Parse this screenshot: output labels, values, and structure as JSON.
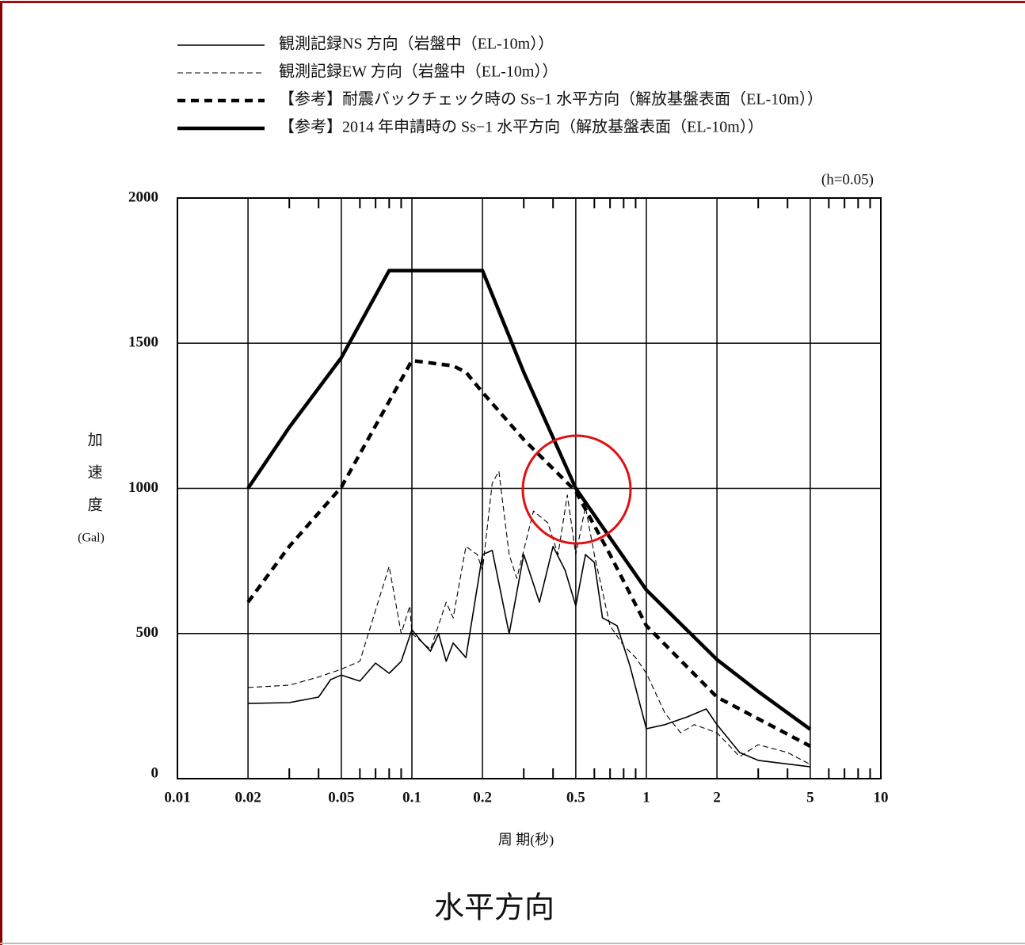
{
  "chart_data": {
    "type": "line",
    "title": "水平方向",
    "annotation": "(h=0.05)",
    "y_label": "加速度",
    "y_unit": "(Gal)",
    "x_label": "周 期(秒)",
    "xscale": "log",
    "xlim": [
      0.01,
      10
    ],
    "xticks": [
      0.01,
      0.02,
      0.05,
      0.1,
      0.2,
      0.5,
      1,
      2,
      5,
      10
    ],
    "xminorticks": [
      0.03,
      0.04,
      0.06,
      0.07,
      0.08,
      0.09,
      0.3,
      0.4,
      0.6,
      0.7,
      0.8,
      0.9,
      3,
      4,
      6,
      7,
      8,
      9
    ],
    "ylim": [
      0,
      2000
    ],
    "yticks": [
      0,
      500,
      1000,
      1500,
      2000
    ],
    "grid": true,
    "legend": "top",
    "series": [
      {
        "name": "観測記録NS 方向（岩盤中（EL-10m））",
        "color": "#000000",
        "style": "solid",
        "width": 1.6,
        "x": [
          0.02,
          0.03,
          0.04,
          0.045,
          0.05,
          0.06,
          0.07,
          0.08,
          0.09,
          0.1,
          0.11,
          0.12,
          0.13,
          0.14,
          0.15,
          0.17,
          0.2,
          0.22,
          0.26,
          0.3,
          0.35,
          0.4,
          0.45,
          0.5,
          0.55,
          0.6,
          0.65,
          0.75,
          0.85,
          1,
          1.2,
          1.5,
          1.8,
          2,
          2.5,
          3,
          5
        ],
        "values": [
          259,
          262,
          281,
          341,
          357,
          336,
          398,
          363,
          404,
          513,
          472,
          439,
          499,
          404,
          467,
          417,
          772,
          786,
          499,
          772,
          608,
          800,
          718,
          595,
          772,
          745,
          554,
          527,
          390,
          172,
          186,
          213,
          240,
          186,
          90,
          63,
          41
        ]
      },
      {
        "name": "観測記録EW 方向（岩盤中（EL-10m））",
        "color": "#000000",
        "style": "dashed-thin",
        "width": 1.1,
        "x": [
          0.02,
          0.03,
          0.04,
          0.05,
          0.06,
          0.07,
          0.08,
          0.09,
          0.098,
          0.1,
          0.12,
          0.14,
          0.15,
          0.17,
          0.19,
          0.2,
          0.22,
          0.235,
          0.26,
          0.28,
          0.33,
          0.38,
          0.42,
          0.46,
          0.5,
          0.55,
          0.6,
          0.7,
          0.8,
          0.9,
          1,
          1.2,
          1.4,
          1.6,
          2,
          2.5,
          3,
          4,
          5
        ],
        "values": [
          314,
          322,
          350,
          377,
          404,
          580,
          731,
          500,
          595,
          500,
          445,
          608,
          554,
          800,
          772,
          718,
          1018,
          1059,
          772,
          690,
          922,
          881,
          772,
          977,
          772,
          936,
          772,
          527,
          458,
          417,
          363,
          226,
          158,
          186,
          158,
          76,
          117,
          90,
          49
        ]
      },
      {
        "name": "【参考】耐震バックチェック時の Ss−1 水平方向（解放基盤表面（EL-10m））",
        "color": "#000000",
        "style": "dashed",
        "width": 4.5,
        "x": [
          0.02,
          0.03,
          0.05,
          0.1,
          0.15,
          0.17,
          0.2,
          0.3,
          0.5,
          0.7,
          1,
          2,
          5
        ],
        "values": [
          608,
          800,
          1004,
          1440,
          1422,
          1400,
          1331,
          1168,
          990,
          772,
          527,
          281,
          112
        ]
      },
      {
        "name": "【参考】2014 年申請時の Ss−1 水平方向（解放基盤表面（EL-10m））",
        "color": "#000000",
        "style": "solid",
        "width": 4.5,
        "x": [
          0.02,
          0.03,
          0.05,
          0.08,
          0.2,
          0.3,
          0.5,
          0.7,
          1,
          2,
          3,
          5
        ],
        "values": [
          1000,
          1210,
          1450,
          1750,
          1750,
          1400,
          1000,
          830,
          650,
          410,
          300,
          170
        ]
      }
    ]
  }
}
